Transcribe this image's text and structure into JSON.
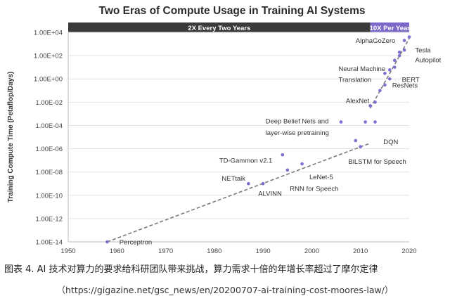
{
  "chart_data": {
    "type": "scatter",
    "title": "Two Eras of Compute Usage in Training AI Systems",
    "ylabel": "Training Compute Time (Petaflop/Days)",
    "xlabel": "",
    "xlim": [
      1950,
      2020
    ],
    "ylim": [
      -14,
      4
    ],
    "y_scale": "log",
    "x_ticks": [
      "1950",
      "1960",
      "1970",
      "1980",
      "1990",
      "2000",
      "2010",
      "2020"
    ],
    "y_ticks": [
      "1.00E+04",
      "1.00E+02",
      "1.00E+00",
      "1.00E-02",
      "1.00E-04",
      "1.00E-06",
      "1.00E-08",
      "1.00E-10",
      "1.00E-12",
      "1.00E-14"
    ],
    "grid": true,
    "eras": [
      {
        "label": "2X Every Two Years",
        "x_range": [
          1950,
          2012
        ],
        "color": "#3a3a3a"
      },
      {
        "label": "10X Per Year",
        "x_range": [
          2012,
          2020
        ],
        "color": "#7b68c9"
      }
    ],
    "points": [
      {
        "x": 1958,
        "y": "1e-14"
      },
      {
        "x": 1987,
        "y": "1e-9"
      },
      {
        "x": 1990,
        "y": "1e-9"
      },
      {
        "x": 1994,
        "y": "3e-7"
      },
      {
        "x": 1995,
        "y": "1.5e-8"
      },
      {
        "x": 1998,
        "y": "5e-8"
      },
      {
        "x": 2006,
        "y": "2e-4"
      },
      {
        "x": 2009,
        "y": "5e-6"
      },
      {
        "x": 2010,
        "y": "1.5e-6"
      },
      {
        "x": 2011,
        "y": "2e-4"
      },
      {
        "x": 2012,
        "y": "5e-3"
      },
      {
        "x": 2013,
        "y": "2e-4"
      },
      {
        "x": 2013,
        "y": "1e-2"
      },
      {
        "x": 2014,
        "y": "1e-1"
      },
      {
        "x": 2015,
        "y": "3e-1"
      },
      {
        "x": 2015,
        "y": "3"
      },
      {
        "x": 2016,
        "y": "1"
      },
      {
        "x": 2016,
        "y": "6"
      },
      {
        "x": 2017,
        "y": "40"
      },
      {
        "x": 2017,
        "y": "10"
      },
      {
        "x": 2018,
        "y": "200"
      },
      {
        "x": 2018,
        "y": "100"
      },
      {
        "x": 2019,
        "y": "300"
      },
      {
        "x": 2019,
        "y": "2e3"
      },
      {
        "x": 2020,
        "y": "4e3"
      }
    ],
    "trend_lines": [
      {
        "name": "2X Every Two Years",
        "x": [
          1958,
          2012
        ],
        "y": [
          "1e-14",
          "3e-6"
        ]
      },
      {
        "name": "10X Per Year",
        "x": [
          2012,
          2020
        ],
        "y": [
          "3e-3",
          "3e3"
        ]
      }
    ],
    "annotations": [
      {
        "text": "Perceptron",
        "x": 1960.5,
        "y": "1e-14",
        "align": "start"
      },
      {
        "text": "NETtalk",
        "x": 1981.5,
        "y": "3e-9",
        "align": "start"
      },
      {
        "text": "ALVINN",
        "x": 1989,
        "y": "1.5e-10",
        "align": "start"
      },
      {
        "text": "TD-Gammon v2.1",
        "x": 1981,
        "y": "1e-7",
        "align": "start"
      },
      {
        "text": "RNN for Speech",
        "x": 1995.5,
        "y": "4e-10",
        "align": "start"
      },
      {
        "text": "LeNet-5",
        "x": 1999.5,
        "y": "4e-9",
        "align": "start"
      },
      {
        "text": "BiLSTM for Speech",
        "x": 2007.5,
        "y": "8e-8",
        "align": "start"
      },
      {
        "text": "Deep Belief Nets and",
        "x": 1990.5,
        "y": "2.5e-4",
        "align": "start"
      },
      {
        "text": "layer-wise pretraining",
        "x": 1990.5,
        "y": "2.5e-5",
        "align": "start"
      },
      {
        "text": "DQN",
        "x": 2014.7,
        "y": "4e-6",
        "align": "start"
      },
      {
        "text": "AlexNet",
        "x": 2007,
        "y": "1.4e-2",
        "align": "start"
      },
      {
        "text": "ResNets",
        "x": 2016.5,
        "y": "3e-1",
        "align": "start"
      },
      {
        "text": "Neural Machine",
        "x": 2005.5,
        "y": "8",
        "align": "start"
      },
      {
        "text": "Translation",
        "x": 2005.5,
        "y": "0.9",
        "align": "start"
      },
      {
        "text": "BERT",
        "x": 2018.5,
        "y": "0.9",
        "align": "start"
      },
      {
        "text": "AlphaGoZero",
        "x": 2009,
        "y": "2e3",
        "align": "start"
      },
      {
        "text": "Tesla",
        "x": 2021.2,
        "y": "300",
        "align": "start"
      },
      {
        "text": "Autopilot",
        "x": 2021.2,
        "y": "45",
        "align": "start"
      }
    ]
  },
  "caption": "图表 4.   AI 技术对算力的要求给科研团队带来挑战，算力需求十倍的年增长率超过了摩尔定律",
  "source": "（https://gigazine.net/gsc_news/en/20200707-ai-training-cost-moores-law/）"
}
